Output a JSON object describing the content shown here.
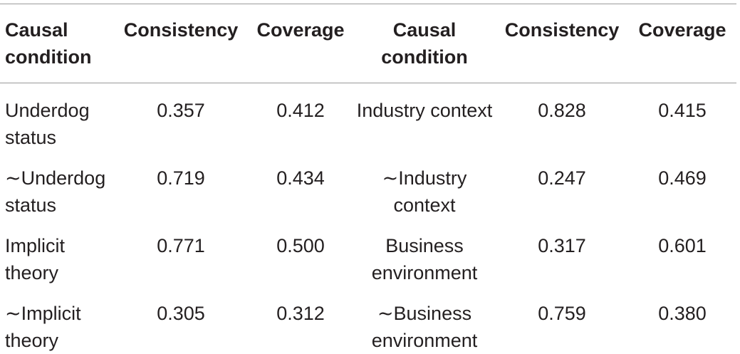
{
  "table": {
    "headers": [
      "Causal condition",
      "Consistency",
      "Coverage",
      "Causal condition",
      "Consistency",
      "Coverage"
    ],
    "rows": [
      [
        "Underdog status",
        "0.357",
        "0.412",
        "Industry context",
        "0.828",
        "0.415"
      ],
      [
        "∼Underdog status",
        "0.719",
        "0.434",
        "∼Industry context",
        "0.247",
        "0.469"
      ],
      [
        "Implicit theory",
        "0.771",
        "0.500",
        "Business environment",
        "0.317",
        "0.601"
      ],
      [
        "∼Implicit theory",
        "0.305",
        "0.312",
        "∼Business environment",
        "0.759",
        "0.380"
      ]
    ]
  }
}
